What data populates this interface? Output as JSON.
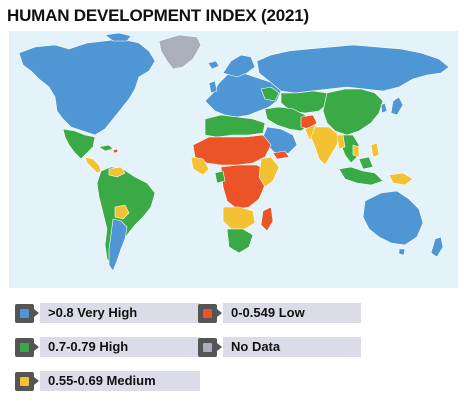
{
  "title": "HUMAN DEVELOPMENT INDEX (2021)",
  "colors": {
    "ocean": "#e4f2fa",
    "very_high": "#4f96d4",
    "high": "#3aaa46",
    "medium": "#f2c232",
    "low": "#ea5427",
    "no_data": "#a9b0bb",
    "border": "#ffffff"
  },
  "legend": [
    {
      "key": "very_high",
      "label": ">0.8 Very High"
    },
    {
      "key": "low",
      "label": "0-0.549 Low"
    },
    {
      "key": "high",
      "label": "0.7-0.79 High"
    },
    {
      "key": "no_data",
      "label": "No Data"
    },
    {
      "key": "medium",
      "label": "0.55-0.69 Medium"
    }
  ]
}
